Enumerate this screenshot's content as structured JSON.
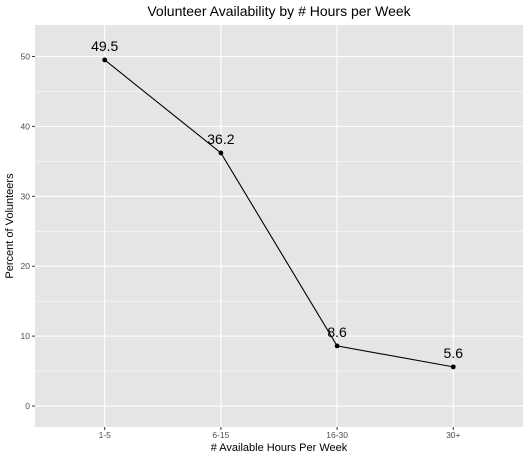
{
  "chart_data": {
    "type": "line",
    "title": "Volunteer Availability by # Hours per Week",
    "xlabel": "# Available Hours Per Week",
    "ylabel": "Percent of Volunteers",
    "categories": [
      "1-5",
      "6-15",
      "16-30",
      "30+"
    ],
    "values": [
      49.5,
      36.2,
      8.6,
      5.6
    ],
    "data_labels": [
      "49.5",
      "36.2",
      "8.6",
      "5.6"
    ],
    "yticks": [
      0,
      10,
      20,
      30,
      40,
      50
    ],
    "ylim": [
      -3,
      54.5
    ],
    "grid": true,
    "legend": "none",
    "panel_color": "#e5e5e5",
    "grid_color": "#ffffff",
    "line_color": "#000000"
  }
}
